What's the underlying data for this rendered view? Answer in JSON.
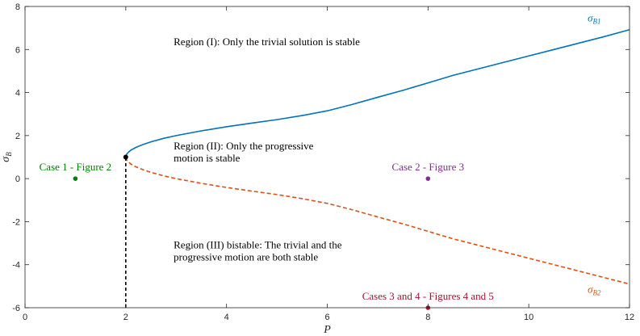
{
  "chart_data": {
    "type": "line",
    "title": "",
    "xlabel": "P",
    "ylabel": {
      "base": "σ",
      "sub": "B"
    },
    "xlim": [
      0,
      12
    ],
    "ylim": [
      -6,
      8
    ],
    "xticks": [
      "0",
      "2",
      "4",
      "6",
      "8",
      "10",
      "12"
    ],
    "yticks": [
      "-6",
      "-4",
      "-2",
      "0",
      "2",
      "4",
      "6",
      "8"
    ],
    "grid": false,
    "colors": {
      "upper": "#0072BD",
      "lower": "#D95319",
      "case1": "#008000",
      "case2": "#7E2F8E",
      "case34": "#A2142F",
      "critical": "#000000"
    },
    "series": [
      {
        "name_base": "σ",
        "name_sub": "B1",
        "style": "solid",
        "x": [
          2.0,
          2.02,
          2.05,
          2.1,
          2.2,
          2.35,
          2.5,
          2.75,
          3.0,
          3.5,
          4.0,
          4.5,
          5.0,
          5.5,
          6.0,
          6.5,
          7.0,
          7.5,
          8.0,
          8.5,
          9.0,
          9.5,
          10.0,
          10.5,
          11.0,
          11.5,
          12.0
        ],
        "y": [
          1.0,
          1.14,
          1.22,
          1.32,
          1.45,
          1.59,
          1.71,
          1.87,
          2.0,
          2.22,
          2.41,
          2.58,
          2.74,
          2.93,
          3.15,
          3.45,
          3.78,
          4.1,
          4.45,
          4.8,
          5.1,
          5.4,
          5.7,
          6.0,
          6.3,
          6.6,
          6.92
        ]
      },
      {
        "name_base": "σ",
        "name_sub": "B2",
        "style": "dashed",
        "x": [
          2.0,
          2.02,
          2.05,
          2.1,
          2.2,
          2.35,
          2.5,
          2.75,
          3.0,
          3.5,
          4.0,
          4.5,
          5.0,
          5.5,
          6.0,
          6.5,
          7.0,
          7.5,
          8.0,
          8.5,
          9.0,
          9.5,
          10.0,
          10.5,
          11.0,
          11.5,
          12.0
        ],
        "y": [
          1.0,
          0.86,
          0.78,
          0.68,
          0.55,
          0.41,
          0.29,
          0.13,
          0.0,
          -0.22,
          -0.41,
          -0.58,
          -0.74,
          -0.93,
          -1.15,
          -1.45,
          -1.78,
          -2.1,
          -2.45,
          -2.8,
          -3.1,
          -3.4,
          -3.7,
          -4.0,
          -4.3,
          -4.6,
          -4.9
        ]
      }
    ],
    "critical_point": {
      "x": 2,
      "y": 1
    },
    "critical_line": {
      "x": 2,
      "y_from": -6,
      "y_to": 1
    },
    "points": [
      {
        "label": "Case 1 - Figure 2",
        "x": 1,
        "y": 0,
        "color_key": "case1"
      },
      {
        "label": "Case 2 - Figure 3",
        "x": 8,
        "y": 0,
        "color_key": "case2"
      },
      {
        "label": "Cases 3 and 4 - Figures 4 and 5",
        "x": 8,
        "y": -6,
        "color_key": "case34"
      }
    ],
    "annotations": [
      {
        "lines": [
          "Region (I): Only the trivial solution is stable"
        ],
        "x": 2.95,
        "y": 6.2
      },
      {
        "lines": [
          "Region (II): Only the progressive",
          "motion is stable"
        ],
        "x": 2.95,
        "y": 1.35
      },
      {
        "lines": [
          "Region (III) bistable: The trivial and the",
          "progressive motion are both stable"
        ],
        "x": 2.95,
        "y": -3.25
      }
    ],
    "series_labels": [
      {
        "series": 0,
        "x": 11.3,
        "y": 7.3
      },
      {
        "series": 1,
        "x": 11.3,
        "y": -5.3
      }
    ]
  }
}
